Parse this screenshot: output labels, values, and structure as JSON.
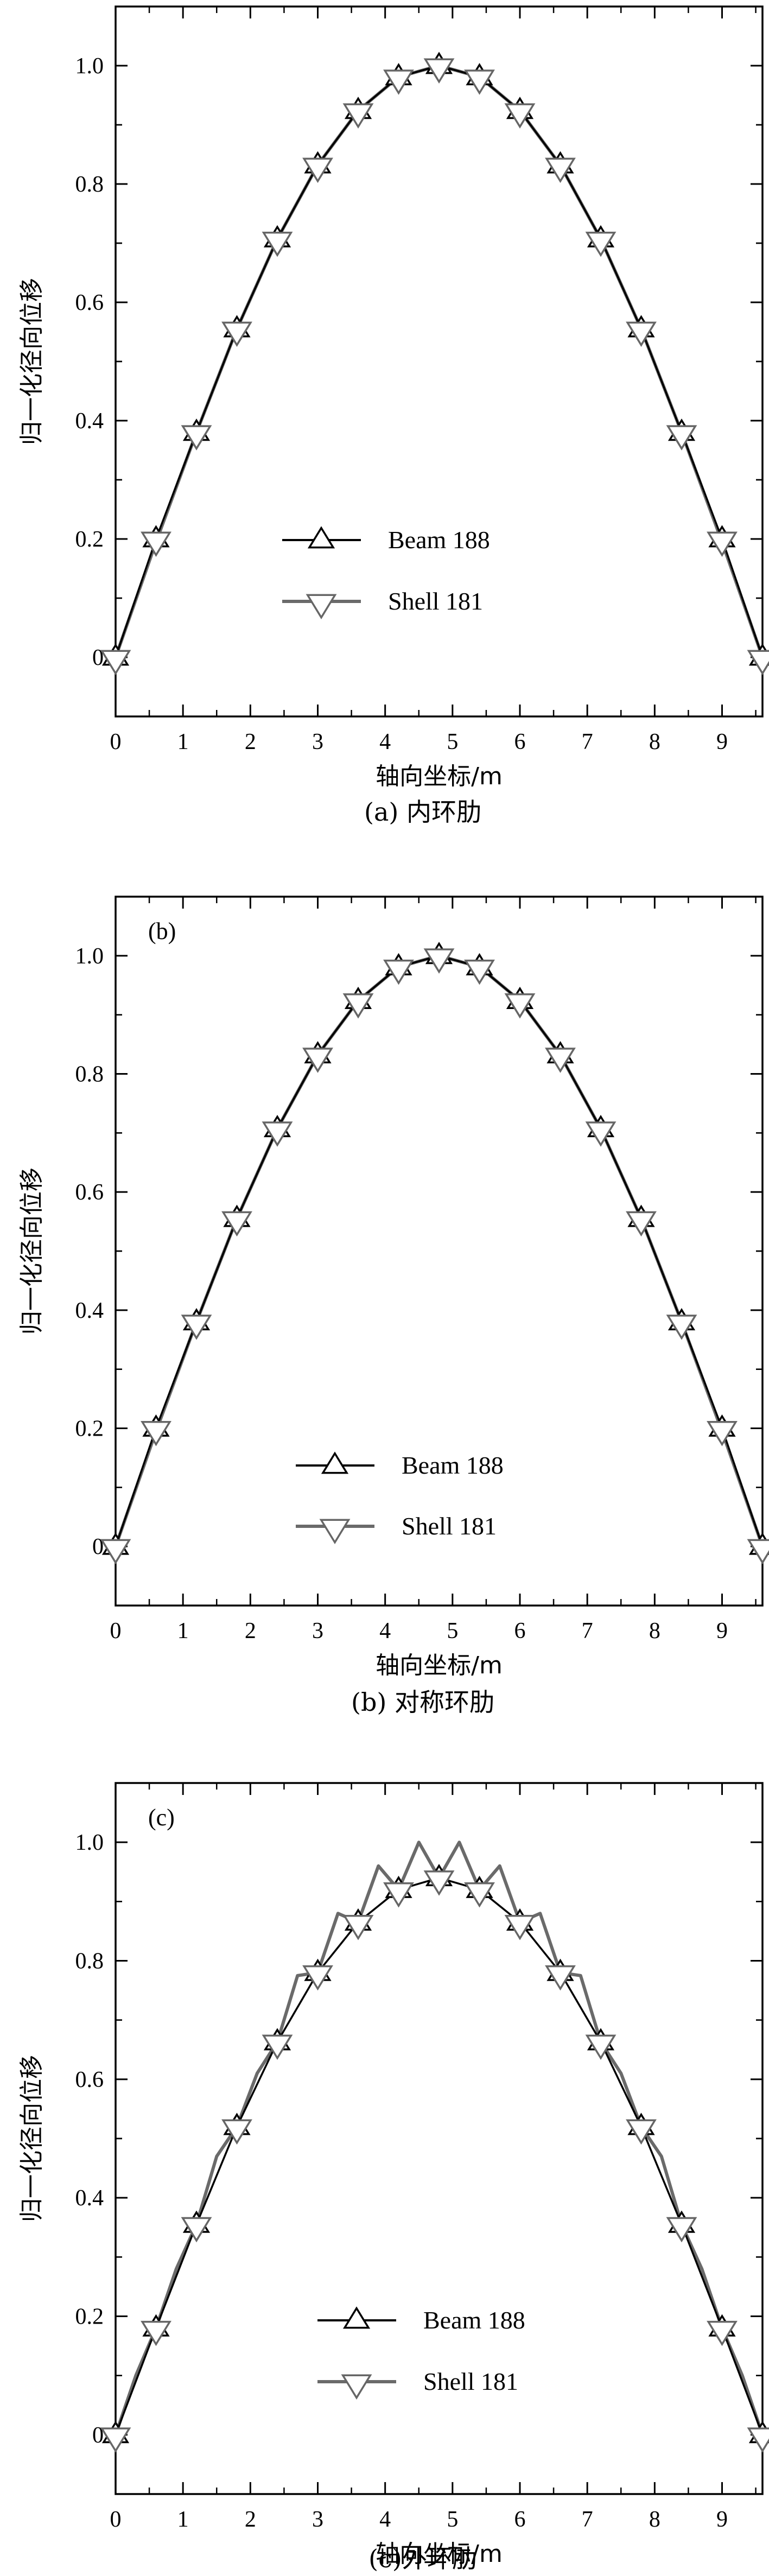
{
  "chart_data": [
    {
      "type": "line",
      "panel_label": "",
      "caption": "(a) 内环肋",
      "xlabel": "轴向坐标/m",
      "ylabel": "归一化径向位移",
      "xlim": [
        0,
        9.6
      ],
      "ylim": [
        -0.1,
        1.1
      ],
      "xticks": [
        "0",
        "1",
        "2",
        "3",
        "4",
        "5",
        "6",
        "7",
        "8",
        "9"
      ],
      "yticks": [
        "0",
        "0.2",
        "0.4",
        "0.6",
        "0.8",
        "1.0"
      ],
      "grid": false,
      "legend_position": "lower-center",
      "series": [
        {
          "name": "Beam 188",
          "x": [
            0,
            0.6,
            1.2,
            1.8,
            2.4,
            3.0,
            3.6,
            4.2,
            4.8,
            5.4,
            6.0,
            6.6,
            7.2,
            7.8,
            8.4,
            9.0,
            9.6
          ],
          "y": [
            0,
            0.2,
            0.38,
            0.555,
            0.707,
            0.832,
            0.924,
            0.981,
            1.0,
            0.981,
            0.924,
            0.832,
            0.707,
            0.555,
            0.38,
            0.2,
            0
          ]
        },
        {
          "name": "Shell 181",
          "x": [
            0,
            0.6,
            1.2,
            1.8,
            2.4,
            3.0,
            3.6,
            4.2,
            4.8,
            5.4,
            6.0,
            6.6,
            7.2,
            7.8,
            8.4,
            9.0,
            9.6
          ],
          "y": [
            0,
            0.195,
            0.38,
            0.555,
            0.707,
            0.832,
            0.924,
            0.981,
            1.0,
            0.981,
            0.924,
            0.832,
            0.707,
            0.555,
            0.38,
            0.195,
            0
          ]
        }
      ]
    },
    {
      "type": "line",
      "panel_label": "(b)",
      "caption": "(b) 对称环肋",
      "xlabel": "轴向坐标/m",
      "ylabel": "归一化径向位移",
      "xlim": [
        0,
        9.6
      ],
      "ylim": [
        -0.1,
        1.1
      ],
      "xticks": [
        "0",
        "1",
        "2",
        "3",
        "4",
        "5",
        "6",
        "7",
        "8",
        "9"
      ],
      "yticks": [
        "0",
        "0.2",
        "0.4",
        "0.6",
        "0.8",
        "1.0"
      ],
      "grid": false,
      "legend_position": "lower-center",
      "series": [
        {
          "name": "Beam 188",
          "x": [
            0,
            0.6,
            1.2,
            1.8,
            2.4,
            3.0,
            3.6,
            4.2,
            4.8,
            5.4,
            6.0,
            6.6,
            7.2,
            7.8,
            8.4,
            9.0,
            9.6
          ],
          "y": [
            0,
            0.2,
            0.38,
            0.555,
            0.707,
            0.832,
            0.924,
            0.981,
            1.0,
            0.981,
            0.924,
            0.832,
            0.707,
            0.555,
            0.38,
            0.2,
            0
          ]
        },
        {
          "name": "Shell 181",
          "x": [
            0,
            0.6,
            1.2,
            1.8,
            2.4,
            3.0,
            3.6,
            4.2,
            4.8,
            5.4,
            6.0,
            6.6,
            7.2,
            7.8,
            8.4,
            9.0,
            9.6
          ],
          "y": [
            0,
            0.195,
            0.38,
            0.555,
            0.707,
            0.832,
            0.924,
            0.981,
            1.0,
            0.981,
            0.924,
            0.832,
            0.707,
            0.555,
            0.38,
            0.195,
            0
          ]
        }
      ]
    },
    {
      "type": "line",
      "panel_label": "(c)",
      "caption": "(c)外环肋",
      "xlabel": "轴向坐标/m",
      "ylabel": "归一化径向位移",
      "xlim": [
        0,
        9.6
      ],
      "ylim": [
        -0.1,
        1.1
      ],
      "xticks": [
        "0",
        "1",
        "2",
        "3",
        "4",
        "5",
        "6",
        "7",
        "8",
        "9"
      ],
      "yticks": [
        "0",
        "0.2",
        "0.4",
        "0.6",
        "0.8",
        "1.0"
      ],
      "grid": false,
      "legend_position": "lower-center",
      "series": [
        {
          "name": "Beam 188",
          "x": [
            0,
            0.6,
            1.2,
            1.8,
            2.4,
            3.0,
            3.6,
            4.2,
            4.8,
            5.4,
            6.0,
            6.6,
            7.2,
            7.8,
            8.4,
            9.0,
            9.6
          ],
          "y": [
            0,
            0.18,
            0.355,
            0.52,
            0.663,
            0.78,
            0.865,
            0.92,
            0.94,
            0.92,
            0.865,
            0.78,
            0.663,
            0.52,
            0.355,
            0.18,
            0
          ]
        },
        {
          "name": "Shell 181",
          "x": [
            0,
            0.3,
            0.6,
            0.9,
            1.2,
            1.5,
            1.8,
            2.1,
            2.4,
            2.7,
            3.0,
            3.3,
            3.6,
            3.9,
            4.2,
            4.5,
            4.8,
            5.1,
            5.4,
            5.7,
            6.0,
            6.3,
            6.6,
            6.9,
            7.2,
            7.5,
            7.8,
            8.1,
            8.4,
            8.7,
            9.0,
            9.3,
            9.6
          ],
          "y": [
            0,
            0.1,
            0.18,
            0.28,
            0.355,
            0.47,
            0.52,
            0.61,
            0.663,
            0.775,
            0.78,
            0.88,
            0.865,
            0.96,
            0.92,
            1.0,
            0.94,
            1.0,
            0.92,
            0.96,
            0.865,
            0.88,
            0.78,
            0.775,
            0.663,
            0.61,
            0.52,
            0.47,
            0.355,
            0.28,
            0.18,
            0.1,
            0
          ]
        }
      ]
    }
  ]
}
